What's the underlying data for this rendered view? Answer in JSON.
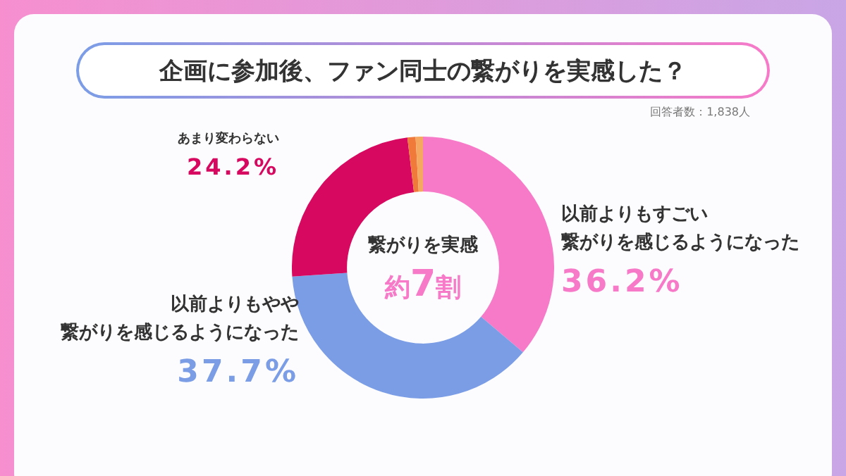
{
  "chart_data": {
    "type": "donut",
    "title": "企画に参加後、ファン同士の繋がりを実感した？",
    "categories": [
      "以前よりもすごい繋がりを感じるようになった",
      "以前よりもやや繋がりを感じるようになった",
      "あまり変わらない",
      null,
      null
    ],
    "values": [
      36.2,
      37.7,
      24.2,
      1.0,
      0.9
    ],
    "colors": [
      "#f77ac8",
      "#7b9de6",
      "#d6085f",
      "#f07a3a",
      "#f5a860"
    ],
    "value_labels": [
      "36.2%",
      "37.7%",
      "24.2%",
      null,
      null
    ],
    "annotations": [
      "回答者数：1,838人",
      "繋がりを実感",
      "約7割"
    ],
    "legend": false
  }
}
